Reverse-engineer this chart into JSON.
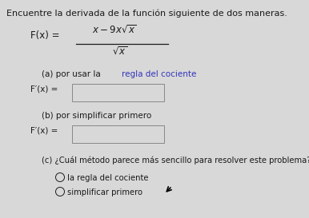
{
  "background_color": "#d8d8d8",
  "title_text": "Encuentre la derivada de la función siguiente de dos maneras.",
  "title_fontsize": 8.0,
  "highlight_color": "#3333bb",
  "text_color": "#1a1a1a",
  "box_facecolor": "#d8d8d8",
  "box_edgecolor": "#888888",
  "fontsize_main": 7.5,
  "fontsize_formula": 8.5,
  "part_a_highlight": "regla del cociente",
  "part_b_label": "(b) por simplificar primero",
  "option1": "la regla del cociente",
  "option2": "simplificar primero"
}
